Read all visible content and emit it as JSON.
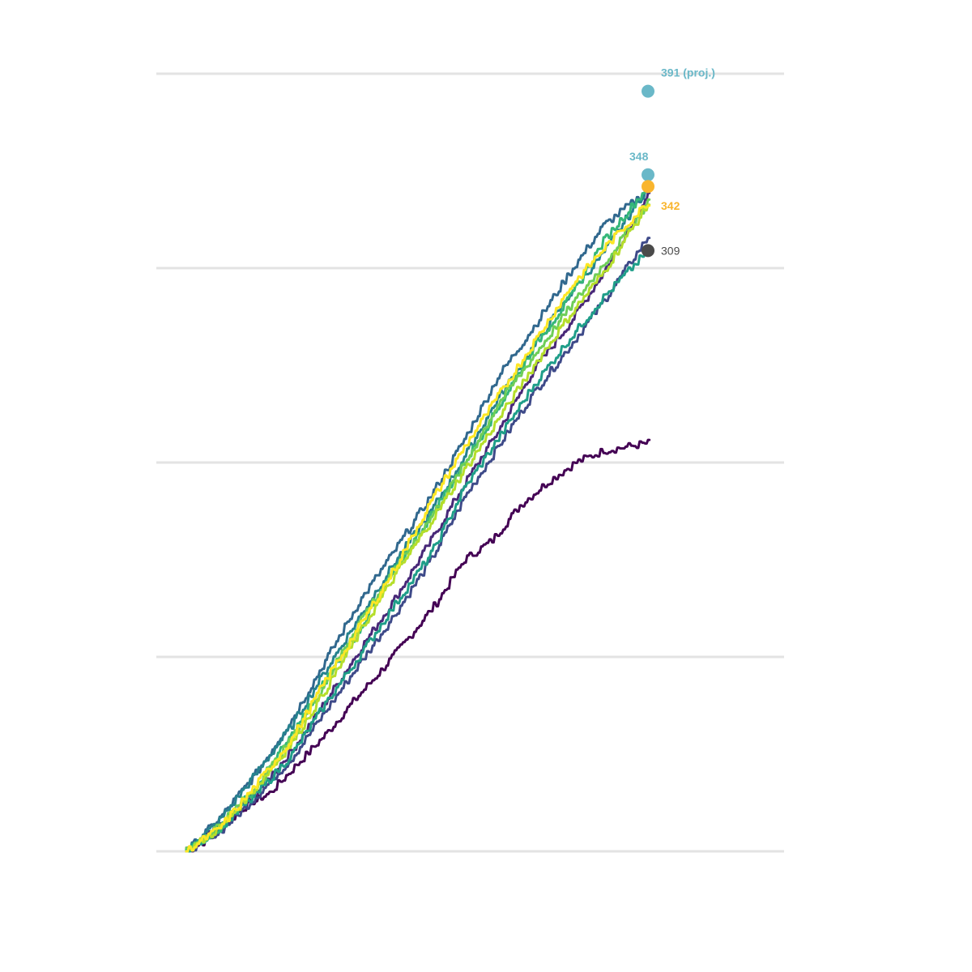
{
  "chart_data": {
    "type": "line",
    "title": "",
    "xlabel": "",
    "ylabel": "",
    "xlim": [
      0,
      166
    ],
    "ylim": [
      0,
      400
    ],
    "grid": true,
    "y_gridlines": [
      0,
      100,
      200,
      300,
      400
    ],
    "legend": "none",
    "series": [
      {
        "color": "#440154",
        "slope": 0.88,
        "noise": 3,
        "points": [
          [
            0,
            0
          ],
          [
            10,
            10
          ],
          [
            20,
            30
          ],
          [
            30,
            38
          ],
          [
            40,
            55
          ],
          [
            50,
            72
          ],
          [
            60,
            90
          ],
          [
            70,
            108
          ],
          [
            80,
            130
          ],
          [
            90,
            148
          ],
          [
            100,
            165
          ],
          [
            110,
            178
          ],
          [
            120,
            198
          ],
          [
            130,
            212
          ],
          [
            140,
            228
          ],
          [
            150,
            240
          ],
          [
            166,
            210
          ]
        ]
      },
      {
        "color": "#482878",
        "points": [
          [
            0,
            0
          ],
          [
            12,
            13
          ],
          [
            25,
            30
          ],
          [
            38,
            52
          ],
          [
            50,
            77
          ],
          [
            62,
            103
          ],
          [
            75,
            130
          ],
          [
            88,
            160
          ],
          [
            100,
            189
          ],
          [
            112,
            216
          ],
          [
            125,
            248
          ],
          [
            138,
            272
          ],
          [
            150,
            298
          ],
          [
            166,
            338
          ]
        ]
      },
      {
        "color": "#3e4a89",
        "points": [
          [
            0,
            0
          ],
          [
            12,
            10
          ],
          [
            25,
            28
          ],
          [
            38,
            48
          ],
          [
            50,
            72
          ],
          [
            62,
            96
          ],
          [
            75,
            122
          ],
          [
            88,
            150
          ],
          [
            100,
            182
          ],
          [
            112,
            208
          ],
          [
            125,
            236
          ],
          [
            138,
            260
          ],
          [
            150,
            283
          ],
          [
            166,
            316
          ]
        ]
      },
      {
        "color": "#31688e",
        "points": [
          [
            0,
            0
          ],
          [
            12,
            17
          ],
          [
            25,
            40
          ],
          [
            38,
            68
          ],
          [
            50,
            98
          ],
          [
            62,
            128
          ],
          [
            75,
            155
          ],
          [
            88,
            183
          ],
          [
            100,
            212
          ],
          [
            112,
            244
          ],
          [
            125,
            270
          ],
          [
            138,
            298
          ],
          [
            150,
            322
          ],
          [
            166,
            340
          ]
        ]
      },
      {
        "color": "#26828e",
        "points": [
          [
            0,
            0
          ],
          [
            12,
            16
          ],
          [
            25,
            40
          ],
          [
            38,
            65
          ],
          [
            50,
            93
          ],
          [
            62,
            120
          ],
          [
            75,
            149
          ],
          [
            88,
            175
          ],
          [
            100,
            203
          ],
          [
            112,
            233
          ],
          [
            125,
            260
          ],
          [
            138,
            287
          ],
          [
            150,
            308
          ],
          [
            166,
            342
          ]
        ]
      },
      {
        "color": "#1f9e89",
        "points": [
          [
            0,
            0
          ],
          [
            12,
            12
          ],
          [
            25,
            29
          ],
          [
            38,
            50
          ],
          [
            50,
            76
          ],
          [
            62,
            100
          ],
          [
            75,
            127
          ],
          [
            88,
            153
          ],
          [
            100,
            187
          ],
          [
            112,
            212
          ],
          [
            125,
            240
          ],
          [
            138,
            264
          ],
          [
            150,
            285
          ],
          [
            166,
            309
          ]
        ]
      },
      {
        "color": "#35b779",
        "points": [
          [
            0,
            0
          ],
          [
            12,
            12
          ],
          [
            25,
            33
          ],
          [
            38,
            60
          ],
          [
            50,
            88
          ],
          [
            62,
            114
          ],
          [
            75,
            145
          ],
          [
            88,
            173
          ],
          [
            100,
            200
          ],
          [
            112,
            228
          ],
          [
            125,
            260
          ],
          [
            138,
            285
          ],
          [
            150,
            314
          ],
          [
            166,
            342
          ]
        ]
      },
      {
        "color": "#6ece58",
        "points": [
          [
            0,
            0
          ],
          [
            12,
            14
          ],
          [
            25,
            33
          ],
          [
            38,
            58
          ],
          [
            50,
            87
          ],
          [
            62,
            118
          ],
          [
            75,
            145
          ],
          [
            88,
            172
          ],
          [
            100,
            199
          ],
          [
            112,
            230
          ],
          [
            125,
            255
          ],
          [
            138,
            280
          ],
          [
            150,
            302
          ],
          [
            166,
            334
          ]
        ]
      },
      {
        "color": "#b5de2b",
        "points": [
          [
            0,
            0
          ],
          [
            12,
            12
          ],
          [
            25,
            33
          ],
          [
            38,
            56
          ],
          [
            50,
            83
          ],
          [
            62,
            112
          ],
          [
            75,
            142
          ],
          [
            88,
            170
          ],
          [
            100,
            196
          ],
          [
            112,
            222
          ],
          [
            125,
            250
          ],
          [
            138,
            276
          ],
          [
            150,
            298
          ],
          [
            166,
            333
          ]
        ]
      },
      {
        "color": "#fde725",
        "points": [
          [
            0,
            0
          ],
          [
            12,
            12
          ],
          [
            25,
            34
          ],
          [
            38,
            58
          ],
          [
            50,
            88
          ],
          [
            62,
            115
          ],
          [
            75,
            146
          ],
          [
            88,
            180
          ],
          [
            100,
            208
          ],
          [
            112,
            234
          ],
          [
            125,
            262
          ],
          [
            138,
            290
          ],
          [
            150,
            310
          ],
          [
            166,
            334
          ]
        ]
      }
    ],
    "callouts": [
      {
        "x": 166,
        "y": 391,
        "label": "391 (proj.)",
        "color": "#6ab8c8",
        "label_pos": "above-right"
      },
      {
        "x": 166,
        "y": 348,
        "label": "348",
        "color": "#6ab8c8",
        "label_pos": "above-left"
      },
      {
        "x": 166,
        "y": 342,
        "label": "342",
        "color": "#f9b52e",
        "label_pos": "below-right"
      },
      {
        "x": 166,
        "y": 309,
        "label": "309",
        "color": "#4a4a4a",
        "label_pos": "right"
      }
    ]
  }
}
